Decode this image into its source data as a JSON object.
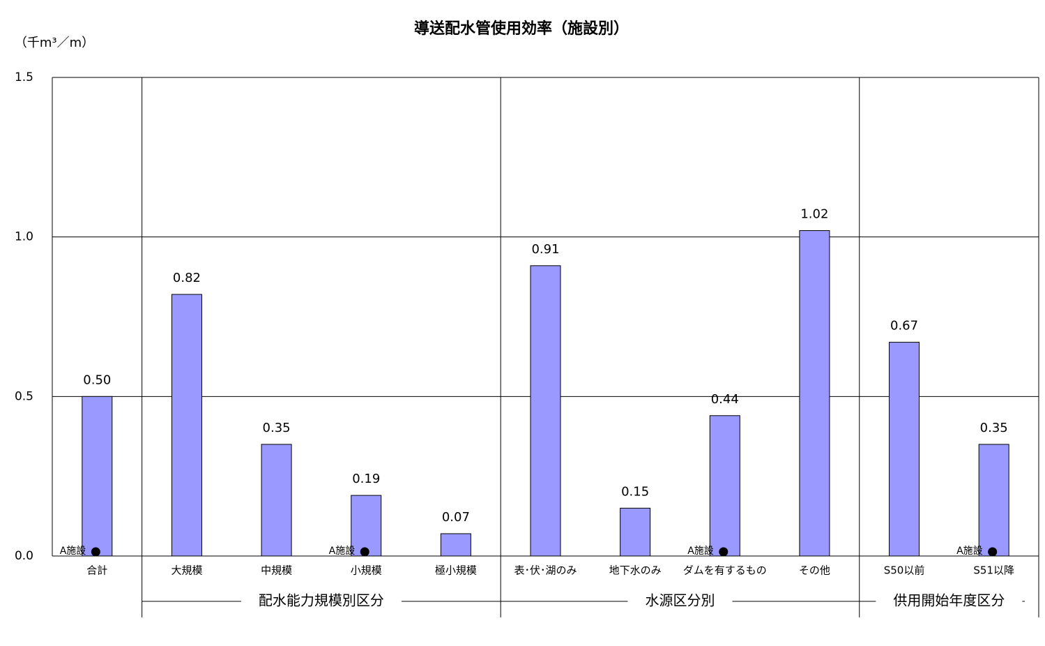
{
  "chart_data": {
    "type": "bar",
    "title": "導送配水管使用効率（施設別）",
    "y_axis_label": "（千m³／m）",
    "categories": [
      "合計",
      "大規模",
      "中規模",
      "小規模",
      "極小規模",
      "表･伏･湖のみ",
      "地下水のみ",
      "ダムを有するもの",
      "その他",
      "S50以前",
      "S51以降"
    ],
    "values": [
      0.5,
      0.82,
      0.35,
      0.19,
      0.07,
      0.91,
      0.15,
      0.44,
      1.02,
      0.67,
      0.35
    ],
    "value_labels": [
      "0.50",
      "0.82",
      "0.35",
      "0.19",
      "0.07",
      "0.91",
      "0.15",
      "0.44",
      "1.02",
      "0.67",
      "0.35"
    ],
    "color": "#9999ff",
    "ylim": [
      0,
      1.5
    ],
    "yticks": [
      {
        "value": 0,
        "label": "0.0"
      },
      {
        "value": 0.5,
        "label": "0.5"
      },
      {
        "value": 1,
        "label": "1.0"
      },
      {
        "value": 1.5,
        "label": "1.5"
      }
    ],
    "grid": true,
    "groups": [
      {
        "label": "配水能力規模別区分",
        "categories": [
          "大規模",
          "中規模",
          "小規模",
          "極小規模"
        ]
      },
      {
        "label": "水源区分別",
        "categories": [
          "表･伏･湖のみ",
          "地下水のみ",
          "ダムを有するもの",
          "その他"
        ]
      },
      {
        "label": "供用開始年度区分",
        "categories": [
          "S50以前",
          "S51以降"
        ]
      }
    ],
    "annotations": [
      {
        "text": "A施設",
        "category": "合計"
      },
      {
        "text": "A施設",
        "category": "小規模"
      },
      {
        "text": "A施設",
        "category": "ダムを有するもの"
      },
      {
        "text": "A施設",
        "category": "S51以降"
      }
    ]
  }
}
